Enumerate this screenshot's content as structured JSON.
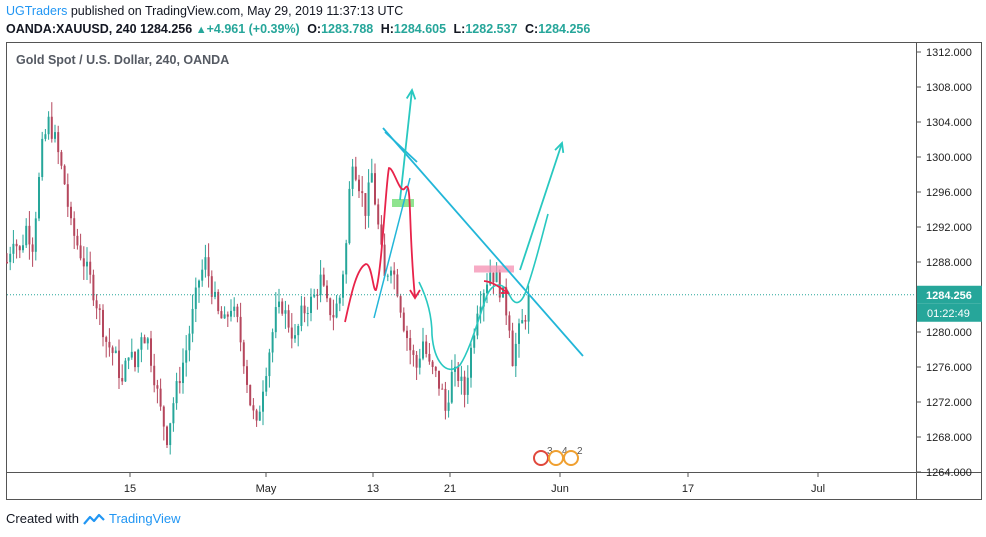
{
  "header": {
    "user": "UGTraders",
    "published_text": "published on TradingView.com, May 29, 2019 11:37:13 UTC",
    "symbol": "OANDA:XAUUSD, 240",
    "last": "1284.256",
    "change": "+4.961 (+0.39%)",
    "o_label": "O:",
    "o_value": "1283.788",
    "h_label": "H:",
    "h_value": "1284.605",
    "l_label": "L:",
    "l_value": "1282.537",
    "c_label": "C:",
    "c_value": "1284.256"
  },
  "footer": {
    "created_with": "Created with",
    "brand": "TradingView"
  },
  "colors": {
    "up": "#26a69a",
    "down": "#b5475d",
    "trend": "#22b6d8",
    "arrow": "#28c8c0",
    "red": "#e8234a",
    "pink_zone": "#f48fb1",
    "green_zone": "#69db6a",
    "price_badge": "#26a69a"
  },
  "chart_data": {
    "type": "candlestick",
    "title": "Gold Spot / U.S. Dollar, 240, OANDA",
    "ylim": [
      1264,
      1313
    ],
    "y_ticks": [
      "1312.000",
      "1308.000",
      "1304.000",
      "1300.000",
      "1296.000",
      "1292.000",
      "1288.000",
      "1284.000",
      "1280.000",
      "1276.000",
      "1272.000",
      "1268.000",
      "1264.000"
    ],
    "x_ticks": [
      "15",
      "May",
      "13",
      "21",
      "Jun",
      "17",
      "Jul"
    ],
    "current_price": "1284.256",
    "countdown": "01:22:49",
    "event_labels": [
      "3",
      "4",
      "2"
    ],
    "path_points": [
      [
        0,
        1288
      ],
      [
        2,
        1291
      ],
      [
        4,
        1289
      ],
      [
        6,
        1292
      ],
      [
        8,
        1290
      ],
      [
        11,
        1301
      ],
      [
        13,
        1304
      ],
      [
        15,
        1302
      ],
      [
        18,
        1297
      ],
      [
        20,
        1292
      ],
      [
        22,
        1290
      ],
      [
        24,
        1288
      ],
      [
        26,
        1286
      ],
      [
        29,
        1282
      ],
      [
        31,
        1279
      ],
      [
        34,
        1277
      ],
      [
        36,
        1274
      ],
      [
        38,
        1278
      ],
      [
        40,
        1276
      ],
      [
        42,
        1280
      ],
      [
        44,
        1279
      ],
      [
        46,
        1275
      ],
      [
        48,
        1271
      ],
      [
        50,
        1268
      ],
      [
        52,
        1272
      ],
      [
        54,
        1275
      ],
      [
        56,
        1278
      ],
      [
        58,
        1282
      ],
      [
        60,
        1286
      ],
      [
        62,
        1288
      ],
      [
        64,
        1285
      ],
      [
        66,
        1282
      ],
      [
        68,
        1281
      ],
      [
        70,
        1283
      ],
      [
        72,
        1281
      ],
      [
        74,
        1277
      ],
      [
        76,
        1272
      ],
      [
        78,
        1269
      ],
      [
        80,
        1274
      ],
      [
        82,
        1278
      ],
      [
        84,
        1282
      ],
      [
        86,
        1283
      ],
      [
        88,
        1281
      ],
      [
        90,
        1279
      ],
      [
        92,
        1282
      ],
      [
        94,
        1283
      ],
      [
        96,
        1284
      ],
      [
        98,
        1286
      ],
      [
        100,
        1283
      ],
      [
        102,
        1282
      ],
      [
        104,
        1284
      ],
      [
        106,
        1290
      ],
      [
        107,
        1296
      ],
      [
        108,
        1300
      ],
      [
        110,
        1297
      ],
      [
        112,
        1294
      ],
      [
        114,
        1298
      ],
      [
        116,
        1292
      ],
      [
        118,
        1286
      ],
      [
        120,
        1288
      ],
      [
        122,
        1285
      ],
      [
        124,
        1281
      ],
      [
        126,
        1278
      ],
      [
        128,
        1276
      ],
      [
        130,
        1279
      ],
      [
        132,
        1276
      ],
      [
        134,
        1275
      ],
      [
        136,
        1273
      ],
      [
        137,
        1271
      ],
      [
        139,
        1275
      ],
      [
        141,
        1275
      ],
      [
        143,
        1273
      ],
      [
        145,
        1278
      ],
      [
        147,
        1283
      ],
      [
        149,
        1285
      ],
      [
        151,
        1287
      ],
      [
        153,
        1286
      ],
      [
        155,
        1284
      ],
      [
        157,
        1281
      ],
      [
        158,
        1277
      ],
      [
        160,
        1280
      ],
      [
        162,
        1282
      ],
      [
        163,
        1284.26
      ]
    ]
  }
}
